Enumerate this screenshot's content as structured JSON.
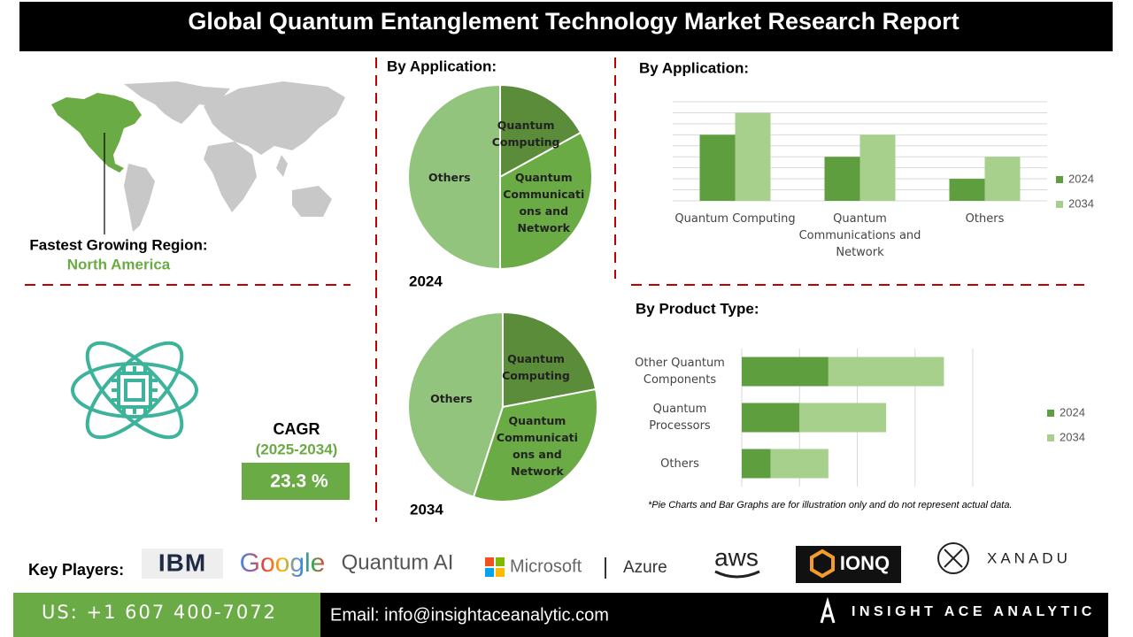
{
  "header": {
    "title": "Global Quantum Entanglement Technology Market Research Report"
  },
  "region": {
    "label": "Fastest Growing Region:",
    "value": "North America"
  },
  "cagr": {
    "label": "CAGR",
    "period": "(2025-2034)",
    "value": "23.3 %"
  },
  "chart_data": [
    {
      "type": "pie",
      "title": "By Application:",
      "label": "2024",
      "categories": [
        "Quantum Computing",
        "Quantum Communications and Network",
        "Others"
      ],
      "values": [
        17,
        33,
        50
      ],
      "colors": [
        "#5b8c3a",
        "#6aab45",
        "#93c47d"
      ]
    },
    {
      "type": "pie",
      "label": "2034",
      "categories": [
        "Quantum Computing",
        "Quantum Communications and Network",
        "Others"
      ],
      "values": [
        22,
        33,
        45
      ],
      "colors": [
        "#5b8c3a",
        "#6aab45",
        "#93c47d"
      ]
    },
    {
      "type": "bar",
      "title": "By Application:",
      "categories": [
        "Quantum Computing",
        "Quantum Communications and Network",
        "Others"
      ],
      "series": [
        {
          "name": "2024",
          "color": "#5e9e3f",
          "values": [
            6,
            4,
            2
          ]
        },
        {
          "name": "2034",
          "color": "#a8d08d",
          "values": [
            8,
            6,
            4
          ]
        }
      ],
      "ylim": [
        0,
        9
      ],
      "yticks": [
        0,
        1,
        2,
        3,
        4,
        5,
        6,
        7,
        8,
        9
      ],
      "grid": true,
      "tick_labels": false,
      "legend": "right"
    },
    {
      "type": "stacked_barh",
      "title": "By Product Type:",
      "categories": [
        "Other Quantum Components",
        "Quantum Processors",
        "Others"
      ],
      "series": [
        {
          "name": "2024",
          "color": "#5e9e3f",
          "values": [
            1.5,
            1,
            0.5
          ]
        },
        {
          "name": "2034",
          "color": "#a8d08d",
          "values": [
            2,
            1.5,
            1
          ]
        }
      ],
      "xlim": [
        0,
        4
      ],
      "xticks": [
        0,
        1,
        2,
        3,
        4
      ],
      "grid": true,
      "tick_labels": false,
      "legend": "right"
    }
  ],
  "note": "*Pie Charts and Bar Graphs are for illustration only and do not represent actual data.",
  "key_players": {
    "label": "Key Players:",
    "logos": [
      "IBM",
      "Google",
      "Quantum AI",
      "Microsoft",
      "Azure",
      "aws",
      "IONQ",
      "XANADU"
    ]
  },
  "footer": {
    "phone": "US: +1 607 400-7072",
    "email": "Email: info@insightaceanalytic.com",
    "brand": "INSIGHT ACE ANALYTIC"
  }
}
